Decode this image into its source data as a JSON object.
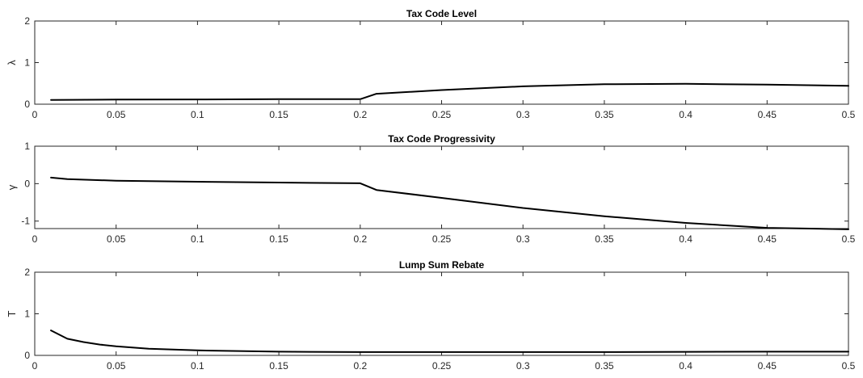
{
  "chart_data": [
    {
      "type": "line",
      "title": "Tax Code Level",
      "xlabel": "",
      "ylabel": "λ",
      "xlim": [
        0,
        0.5
      ],
      "ylim": [
        0,
        2
      ],
      "xticks": [
        0,
        0.05,
        0.1,
        0.15,
        0.2,
        0.25,
        0.3,
        0.35,
        0.4,
        0.45,
        0.5
      ],
      "xtick_labels": [
        "0",
        "0.05",
        "0.1",
        "0.15",
        "0.2",
        "0.25",
        "0.3",
        "0.35",
        "0.4",
        "0.45",
        "0.5"
      ],
      "yticks": [
        0,
        1,
        2
      ],
      "ytick_labels": [
        "0",
        "1",
        "2"
      ],
      "grid": false,
      "series": [
        {
          "color": "#000000",
          "x": [
            0.01,
            0.05,
            0.1,
            0.15,
            0.2,
            0.21,
            0.25,
            0.3,
            0.35,
            0.4,
            0.45,
            0.5
          ],
          "y": [
            0.1,
            0.11,
            0.115,
            0.12,
            0.12,
            0.25,
            0.34,
            0.43,
            0.48,
            0.49,
            0.47,
            0.44
          ]
        }
      ]
    },
    {
      "type": "line",
      "title": "Tax Code Progressivity",
      "xlabel": "",
      "ylabel": "γ",
      "xlim": [
        0,
        0.5
      ],
      "ylim": [
        -1.2,
        1
      ],
      "xticks": [
        0,
        0.05,
        0.1,
        0.15,
        0.2,
        0.25,
        0.3,
        0.35,
        0.4,
        0.45,
        0.5
      ],
      "xtick_labels": [
        "0",
        "0.05",
        "0.1",
        "0.15",
        "0.2",
        "0.25",
        "0.3",
        "0.35",
        "0.4",
        "0.45",
        "0.5"
      ],
      "yticks": [
        -1,
        0,
        1
      ],
      "ytick_labels": [
        "-1",
        "0",
        "1"
      ],
      "grid": false,
      "series": [
        {
          "color": "#000000",
          "x": [
            0.01,
            0.02,
            0.05,
            0.1,
            0.15,
            0.2,
            0.21,
            0.25,
            0.3,
            0.35,
            0.4,
            0.45,
            0.5
          ],
          "y": [
            0.16,
            0.12,
            0.08,
            0.05,
            0.03,
            0.01,
            -0.17,
            -0.38,
            -0.65,
            -0.87,
            -1.05,
            -1.18,
            -1.22
          ]
        }
      ]
    },
    {
      "type": "line",
      "title": "Lump Sum Rebate",
      "xlabel": "",
      "ylabel": "T",
      "xlim": [
        0,
        0.5
      ],
      "ylim": [
        0,
        2
      ],
      "xticks": [
        0,
        0.05,
        0.1,
        0.15,
        0.2,
        0.25,
        0.3,
        0.35,
        0.4,
        0.45,
        0.5
      ],
      "xtick_labels": [
        "0",
        "0.05",
        "0.1",
        "0.15",
        "0.2",
        "0.25",
        "0.3",
        "0.35",
        "0.4",
        "0.45",
        "0.5"
      ],
      "yticks": [
        0,
        1,
        2
      ],
      "ytick_labels": [
        "0",
        "1",
        "2"
      ],
      "grid": false,
      "series": [
        {
          "color": "#000000",
          "x": [
            0.01,
            0.02,
            0.03,
            0.04,
            0.05,
            0.07,
            0.1,
            0.15,
            0.2,
            0.25,
            0.3,
            0.35,
            0.4,
            0.45,
            0.5
          ],
          "y": [
            0.6,
            0.4,
            0.32,
            0.26,
            0.22,
            0.16,
            0.12,
            0.09,
            0.08,
            0.08,
            0.08,
            0.08,
            0.085,
            0.09,
            0.09
          ]
        }
      ]
    }
  ]
}
